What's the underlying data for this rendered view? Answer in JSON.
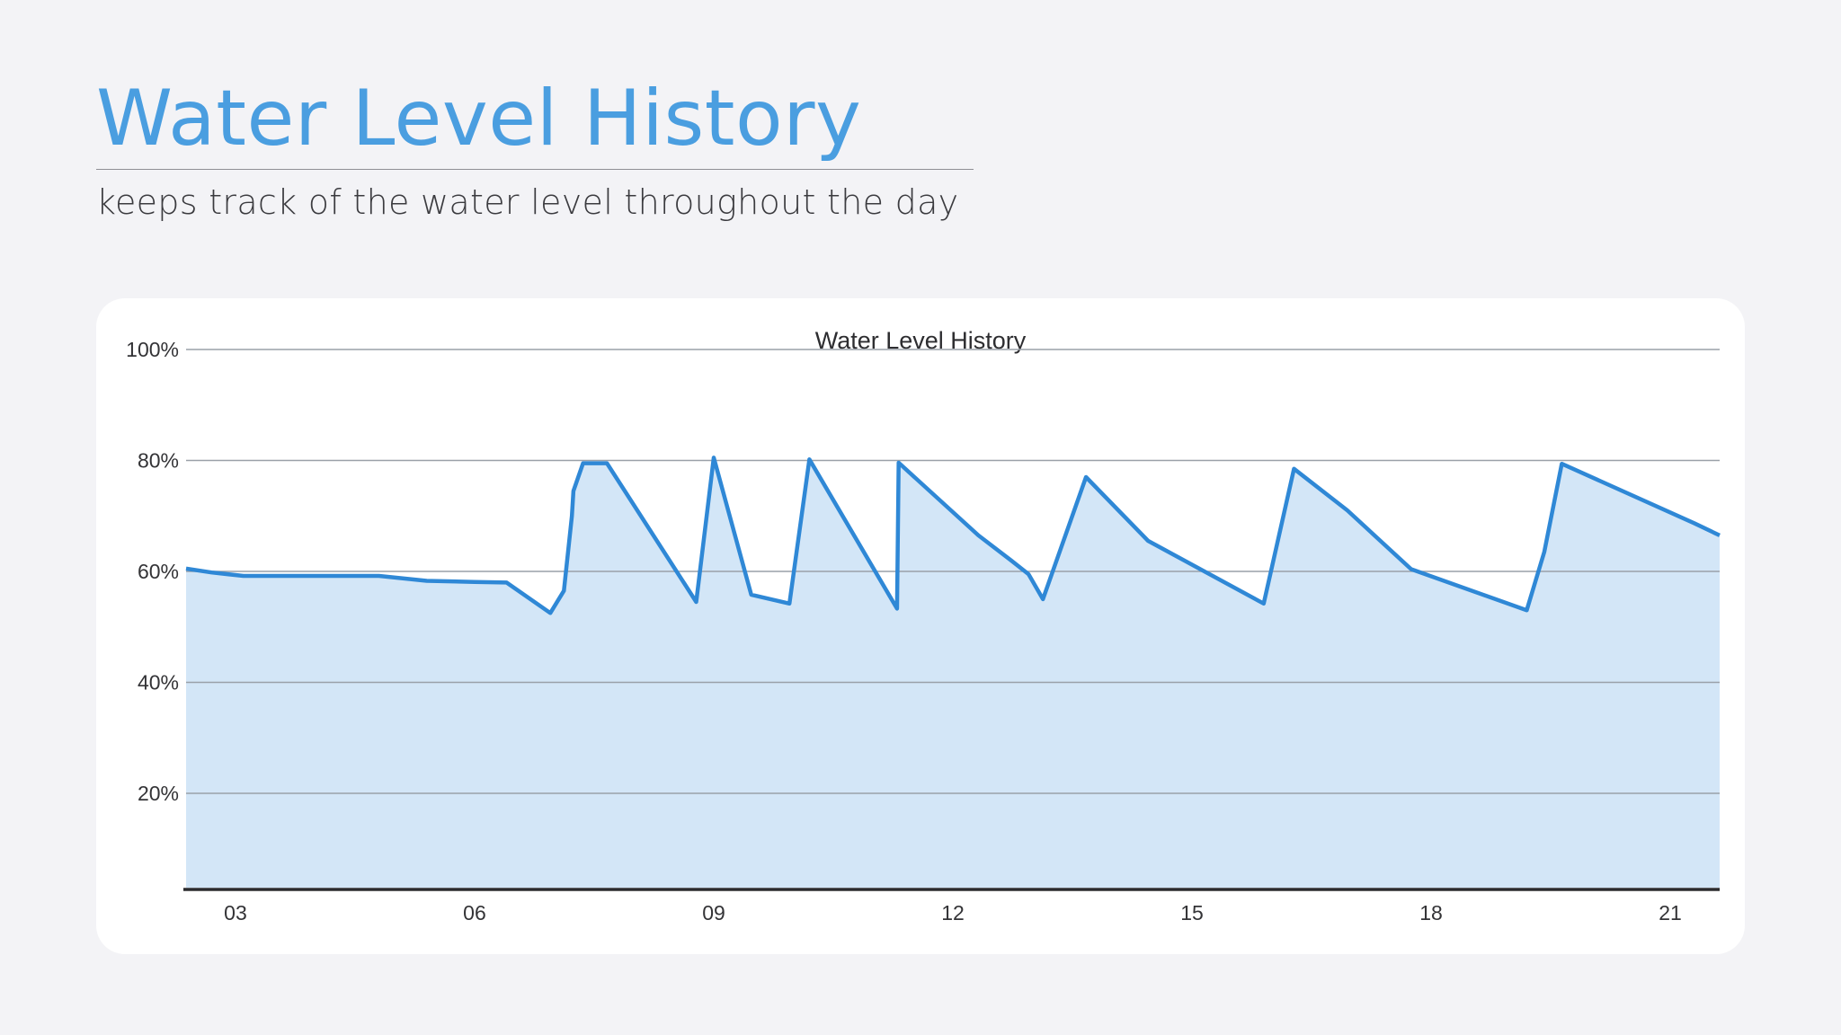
{
  "header": {
    "title": "Water Level History",
    "subtitle": "keeps track of the water level throughout the day"
  },
  "colors": {
    "accent": "#4a9ee0",
    "line": "#2f88d6",
    "fill": "#d3e6f7",
    "grid": "#9aa0a8",
    "baseline": "#2b2b2e",
    "background": "#f3f3f6",
    "card": "#ffffff"
  },
  "chart_data": {
    "type": "area",
    "title": "Water Level History",
    "xlabel": "",
    "ylabel": "",
    "xlim": [
      2.38,
      21.62
    ],
    "ylim": [
      3,
      100
    ],
    "x_ticks": [
      3,
      6,
      9,
      12,
      15,
      18,
      21
    ],
    "x_tick_labels": [
      "03",
      "06",
      "09",
      "12",
      "15",
      "18",
      "21"
    ],
    "y_ticks": [
      20,
      40,
      60,
      80,
      100
    ],
    "y_tick_labels": [
      "20%",
      "40%",
      "60%",
      "80%",
      "100%"
    ],
    "grid": true,
    "legend": "none",
    "series": [
      {
        "x": [
          2.38,
          2.7,
          3.1,
          4.0,
          4.8,
          5.4,
          6.0,
          6.4,
          6.95,
          7.12,
          7.22,
          7.24,
          7.36,
          7.5,
          7.66,
          8.78,
          9.0,
          9.47,
          9.95,
          10.2,
          11.3,
          11.32,
          12.32,
          12.73,
          12.95,
          13.13,
          13.67,
          14.45,
          15.9,
          16.28,
          16.95,
          17.75,
          19.2,
          19.42,
          19.64,
          21.3,
          21.62
        ],
        "values": [
          60.5,
          59.8,
          59.2,
          59.2,
          59.2,
          58.3,
          58.1,
          58.0,
          52.5,
          56.5,
          70.0,
          74.5,
          79.5,
          79.5,
          79.5,
          54.5,
          80.5,
          55.8,
          54.2,
          80.2,
          53.3,
          79.6,
          66.5,
          62.0,
          59.5,
          55.0,
          77.0,
          65.5,
          54.2,
          78.5,
          71.0,
          60.4,
          53.0,
          63.5,
          79.4,
          68.7,
          66.5
        ]
      }
    ]
  }
}
